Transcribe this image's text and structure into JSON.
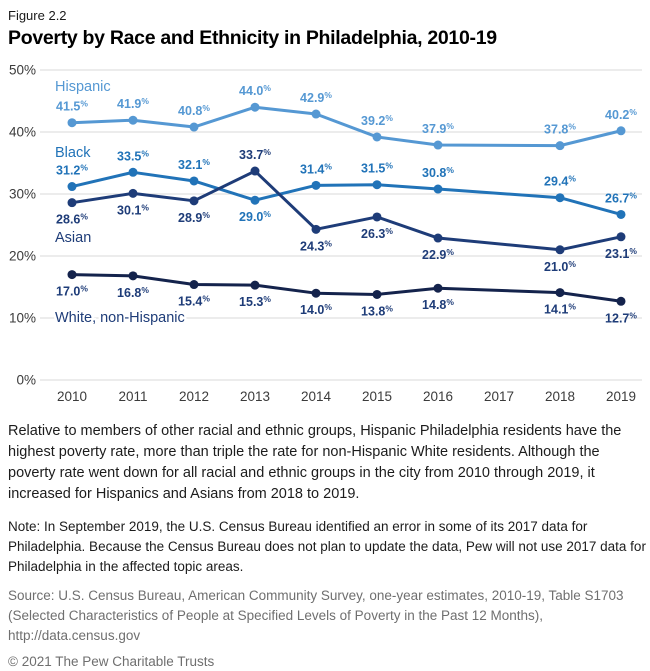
{
  "figure": {
    "label": "Figure 2.2",
    "title": "Poverty by Race and Ethnicity in Philadelphia, 2010-19"
  },
  "chart_data": {
    "type": "line",
    "title": "Poverty by Race and Ethnicity in Philadelphia, 2010-19",
    "x_categories": [
      "2010",
      "2011",
      "2012",
      "2013",
      "2014",
      "2015",
      "2016",
      "2017",
      "2018",
      "2019"
    ],
    "ylim": [
      0,
      50
    ],
    "yticks": [
      50,
      40,
      30,
      20,
      10,
      0
    ],
    "ytick_labels": [
      "50%",
      "40%",
      "30%",
      "20%",
      "10%",
      "0%"
    ],
    "grid": true,
    "legend_position": "inline-left",
    "series": [
      {
        "name": "Hispanic",
        "line_color": "#5598D3",
        "label_color": "#5598D3",
        "values": [
          41.5,
          41.9,
          40.8,
          44.0,
          42.9,
          39.2,
          37.9,
          null,
          37.8,
          40.2
        ],
        "label_side": [
          "above",
          "above",
          "above",
          "above",
          "above",
          "above",
          "above",
          null,
          "above",
          "above"
        ]
      },
      {
        "name": "Black",
        "line_color": "#2173B8",
        "label_color": "#2173B8",
        "values": [
          31.2,
          33.5,
          32.1,
          29.0,
          31.4,
          31.5,
          30.8,
          null,
          29.4,
          26.7
        ],
        "label_side": [
          "above",
          "above",
          "above",
          "below",
          "above",
          "above",
          "above",
          null,
          "above",
          "above"
        ]
      },
      {
        "name": "Asian",
        "line_color": "#1E3C78",
        "label_color": "#1E3C78",
        "values": [
          28.6,
          30.1,
          28.9,
          33.7,
          24.3,
          26.3,
          22.9,
          null,
          21.0,
          23.1
        ],
        "label_side": [
          "below",
          "below",
          "below",
          "above",
          "below",
          "below",
          "below",
          null,
          "below",
          "below"
        ]
      },
      {
        "name": "White, non-Hispanic",
        "line_color": "#14234C",
        "label_color": "#1E3C78",
        "values": [
          17.0,
          16.8,
          15.4,
          15.3,
          14.0,
          13.8,
          14.8,
          null,
          14.1,
          12.7
        ],
        "label_side": [
          "below",
          "below",
          "below",
          "below",
          "below",
          "below",
          "below",
          null,
          "below",
          "below"
        ]
      }
    ]
  },
  "annotation": "Relative to members of other racial and ethnic groups, Hispanic Philadelphia residents have the highest poverty rate, more than triple the rate for non-Hispanic White residents. Although the poverty rate went down for all racial and ethnic groups in the city from 2010 through 2019, it increased for Hispanics and Asians from 2018 to 2019.",
  "note": "Note: In September 2019, the U.S. Census Bureau identified an error in some of its 2017 data for Philadelphia. Because the Census Bureau does not plan to update the data, Pew will not use 2017 data for Philadelphia in the affected topic areas.",
  "source": "Source: U.S. Census Bureau, American Community Survey, one-year estimates, 2010-19, Table S1703 (Selected Characteristics of People at Specified Levels of Poverty in the Past 12 Months), http://data.census.gov",
  "copyright": "© 2021 The Pew Charitable Trusts",
  "colors": {
    "grid": "#D9D9D9",
    "axis_text": "#3B3B3B",
    "body_text": "#1C1C1C",
    "muted_text": "#6F6F6F"
  }
}
